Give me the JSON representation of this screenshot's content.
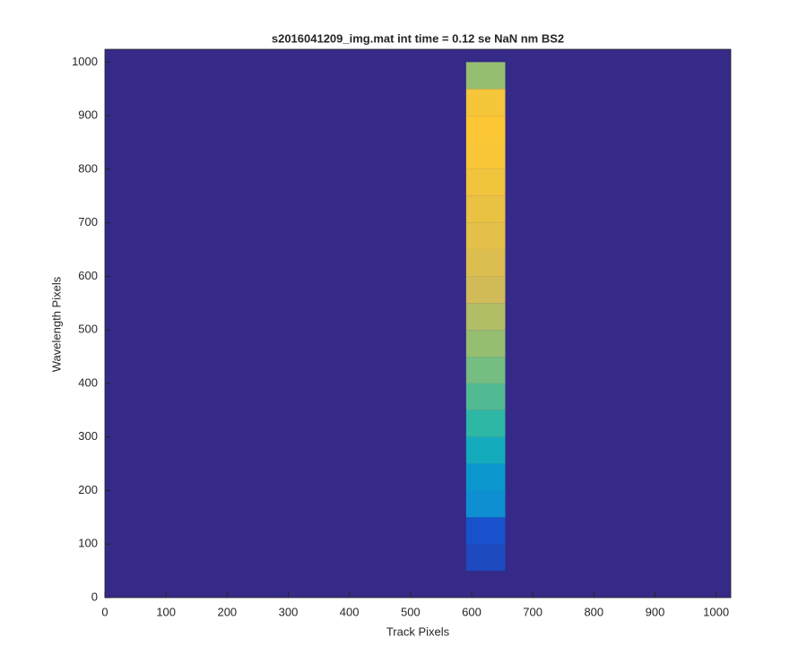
{
  "chart_data": {
    "type": "heatmap",
    "title": "s2016041209_img.mat int time = 0.12 se  NaN nm BS2",
    "xlabel": "Track Pixels",
    "ylabel": "Wavelength Pixels",
    "xlim": [
      0,
      1024
    ],
    "ylim": [
      0,
      1024
    ],
    "xticks": [
      0,
      100,
      200,
      300,
      400,
      500,
      600,
      700,
      800,
      900,
      1000
    ],
    "yticks": [
      0,
      100,
      200,
      300,
      400,
      500,
      600,
      700,
      800,
      900,
      1000
    ],
    "clim": [
      0,
      1
    ],
    "colormap": [
      "#352a87",
      "#0f5cdd",
      "#1481d6",
      "#06a4ca",
      "#2eb7a4",
      "#87bf77",
      "#d1bb59",
      "#fec832",
      "#f9fb0e"
    ],
    "background_value": 0,
    "band": {
      "x": [
        591,
        655
      ],
      "y_edges": [
        50,
        100,
        150,
        200,
        250,
        300,
        350,
        400,
        450,
        500,
        550,
        600,
        650,
        700,
        750,
        800,
        850,
        900,
        950,
        1000
      ],
      "values": [
        0.08,
        0.1,
        0.3,
        0.33,
        0.42,
        0.5,
        0.55,
        0.6,
        0.65,
        0.7,
        0.75,
        0.78,
        0.8,
        0.82,
        0.84,
        0.86,
        0.87,
        0.85,
        0.65
      ]
    }
  }
}
